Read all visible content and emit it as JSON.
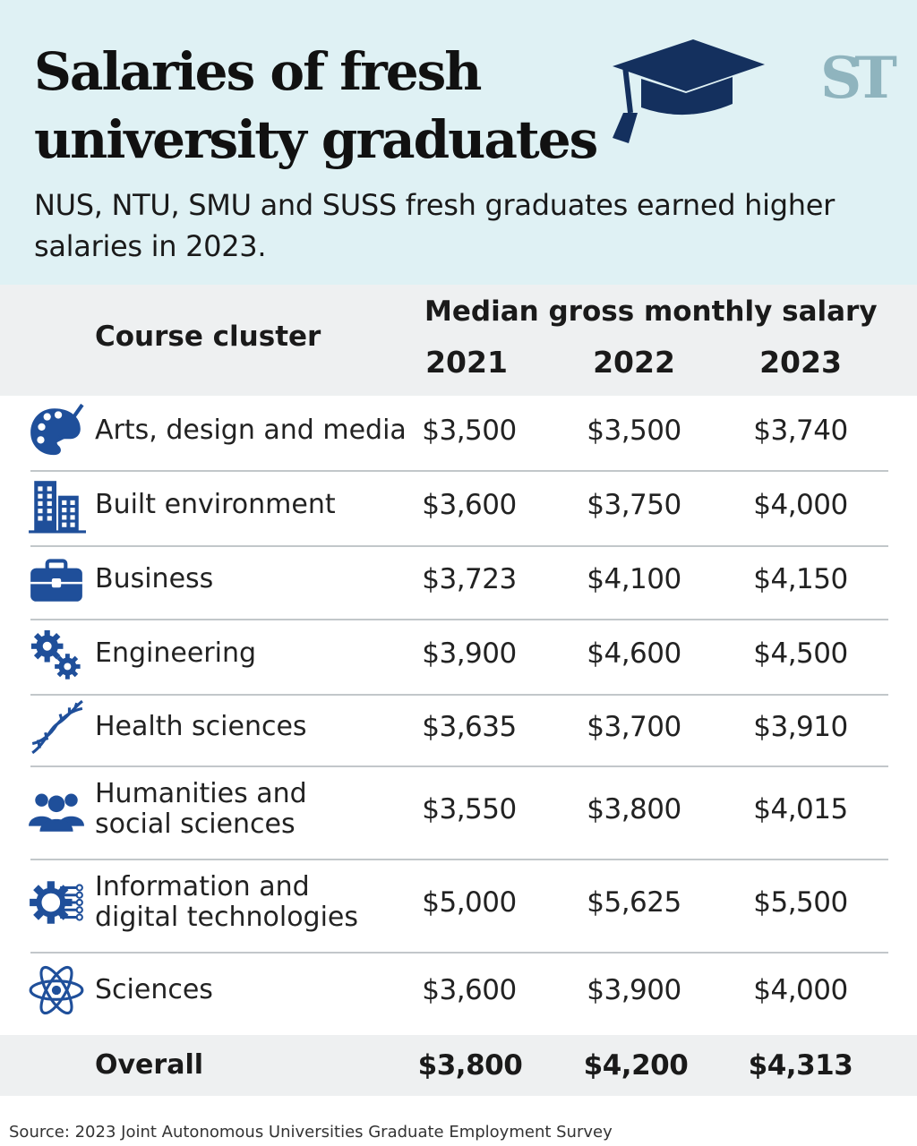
{
  "header": {
    "title_line1": "Salaries of fresh",
    "title_line2": "university graduates",
    "subtitle_line1": "NUS, NTU, SMU and SUSS fresh graduates earned higher",
    "subtitle_line2": "salaries in 2023.",
    "logo": "ST",
    "cap_icon": "graduation-cap-icon"
  },
  "colors": {
    "header_bg": "#dff1f4",
    "icon_blue": "#1f4f9a",
    "cap_navy": "#14305e",
    "logo": "#8fb4be"
  },
  "chart_data": {
    "type": "table",
    "title": "Salaries of fresh university graduates",
    "subtitle": "NUS, NTU, SMU and SUSS fresh graduates earned higher salaries in 2023.",
    "row_header": "Course cluster",
    "group_header": "Median gross monthly salary",
    "columns": [
      "2021",
      "2022",
      "2023"
    ],
    "rows": [
      {
        "label_lines": [
          "Arts, design and media"
        ],
        "icon": "palette-icon",
        "values": [
          "$3,500",
          "$3,500",
          "$3,740"
        ]
      },
      {
        "label_lines": [
          "Built environment"
        ],
        "icon": "building-icon",
        "values": [
          "$3,600",
          "$3,750",
          "$4,000"
        ]
      },
      {
        "label_lines": [
          "Business"
        ],
        "icon": "briefcase-icon",
        "values": [
          "$3,723",
          "$4,100",
          "$4,150"
        ]
      },
      {
        "label_lines": [
          "Engineering"
        ],
        "icon": "gears-icon",
        "values": [
          "$3,900",
          "$4,600",
          "$4,500"
        ]
      },
      {
        "label_lines": [
          "Health sciences"
        ],
        "icon": "dna-icon",
        "values": [
          "$3,635",
          "$3,700",
          "$3,910"
        ]
      },
      {
        "label_lines": [
          "Humanities and",
          "social sciences"
        ],
        "icon": "people-icon",
        "values": [
          "$3,550",
          "$3,800",
          "$4,015"
        ]
      },
      {
        "label_lines": [
          "Information and",
          "digital technologies"
        ],
        "icon": "circuit-head-icon",
        "values": [
          "$5,000",
          "$5,625",
          "$5,500"
        ]
      },
      {
        "label_lines": [
          "Sciences"
        ],
        "icon": "atom-icon",
        "values": [
          "$3,600",
          "$3,900",
          "$4,000"
        ]
      }
    ],
    "total": {
      "label": "Overall",
      "values": [
        "$3,800",
        "$4,200",
        "$4,313"
      ]
    }
  },
  "source": "Source: 2023 Joint Autonomous Universities Graduate Employment Survey"
}
